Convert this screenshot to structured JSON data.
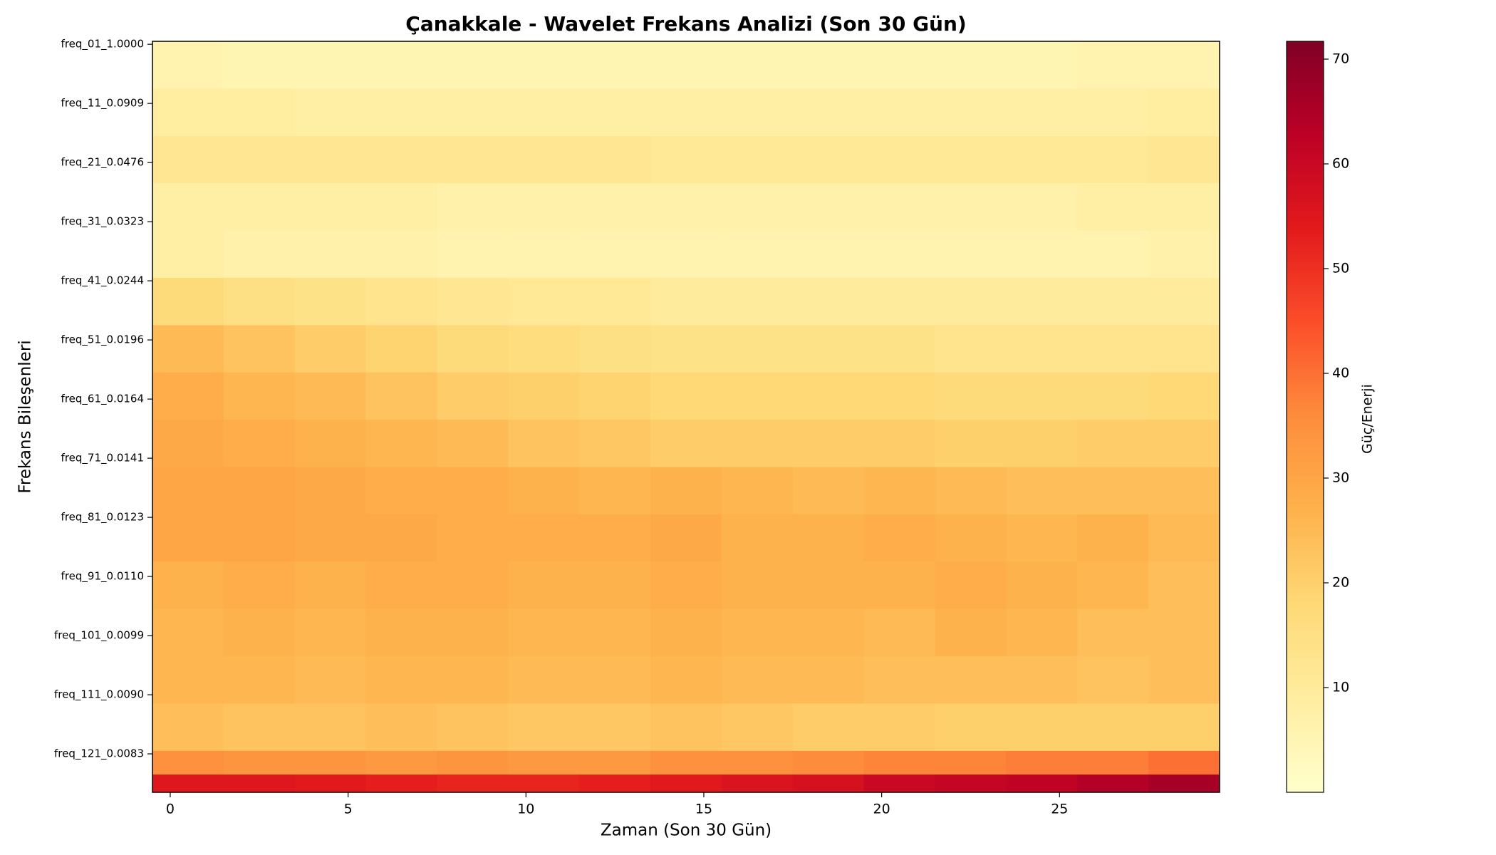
{
  "chart_data": {
    "type": "heatmap",
    "title": "Çanakkale - Wavelet Frekans Analizi (Son 30 Gün)",
    "xlabel": "Zaman (Son 30 Gün)",
    "ylabel": "Frekans Bileşenleri",
    "colorbar_label": "Güç/Enerji",
    "colormap": [
      "#ffffcc",
      "#ffeda0",
      "#fed976",
      "#feb24c",
      "#fd8d3c",
      "#fc4e2a",
      "#e31a1c",
      "#bd0026",
      "#800026"
    ],
    "xlim": [
      -0.5,
      29.5
    ],
    "ylim": [
      127.5,
      0.5
    ],
    "clim": [
      0,
      71.7
    ],
    "xticks": [
      0,
      5,
      10,
      15,
      20,
      25
    ],
    "yticks": [
      {
        "value": 1,
        "label": "freq_01_1.0000"
      },
      {
        "value": 11,
        "label": "freq_11_0.0909"
      },
      {
        "value": 21,
        "label": "freq_21_0.0476"
      },
      {
        "value": 31,
        "label": "freq_31_0.0323"
      },
      {
        "value": 41,
        "label": "freq_41_0.0244"
      },
      {
        "value": 51,
        "label": "freq_51_0.0196"
      },
      {
        "value": 61,
        "label": "freq_61_0.0164"
      },
      {
        "value": 71,
        "label": "freq_71_0.0141"
      },
      {
        "value": 81,
        "label": "freq_81_0.0123"
      },
      {
        "value": 91,
        "label": "freq_91_0.0110"
      },
      {
        "value": 101,
        "label": "freq_101_0.0099"
      },
      {
        "value": 111,
        "label": "freq_111_0.0090"
      },
      {
        "value": 121,
        "label": "freq_121_0.0083"
      }
    ],
    "cticks": [
      10,
      20,
      30,
      40,
      50,
      60,
      70
    ],
    "x_edges": [
      -0.5,
      1.5,
      3.5,
      5.5,
      7.5,
      9.5,
      11.5,
      13.5,
      15.5,
      17.5,
      19.5,
      21.5,
      23.5,
      25.5,
      27.5,
      29.5
    ],
    "y_edges": [
      0.5,
      8.5,
      16.5,
      24.5,
      32.5,
      40.5,
      48.5,
      56.5,
      64.5,
      72.5,
      80.5,
      88.5,
      96.5,
      104.5,
      112.5,
      120.5,
      124.5,
      127.5
    ],
    "values": [
      [
        6,
        5,
        5,
        5,
        5,
        5,
        5,
        5,
        5,
        5,
        5,
        5,
        5,
        6,
        6
      ],
      [
        9,
        9,
        8,
        8,
        8,
        8,
        8,
        8,
        8,
        8,
        8,
        8,
        8,
        8,
        9
      ],
      [
        12,
        12,
        12,
        12,
        12,
        12,
        12,
        11,
        11,
        11,
        11,
        11,
        11,
        11,
        12
      ],
      [
        8,
        8,
        8,
        8,
        7,
        7,
        7,
        7,
        7,
        7,
        7,
        7,
        7,
        8,
        8
      ],
      [
        8,
        7,
        7,
        7,
        6,
        6,
        6,
        6,
        6,
        6,
        6,
        6,
        6,
        6,
        7
      ],
      [
        17,
        15,
        14,
        13,
        12,
        11,
        11,
        10,
        10,
        10,
        10,
        10,
        10,
        10,
        10
      ],
      [
        25,
        23,
        21,
        19,
        17,
        16,
        15,
        14,
        14,
        14,
        14,
        13,
        13,
        13,
        13
      ],
      [
        28,
        26,
        25,
        23,
        21,
        20,
        19,
        18,
        18,
        18,
        18,
        17,
        17,
        17,
        18
      ],
      [
        29,
        28,
        27,
        26,
        25,
        23,
        22,
        21,
        21,
        21,
        21,
        20,
        20,
        21,
        21
      ],
      [
        30,
        30,
        29,
        28,
        28,
        27,
        26,
        27,
        26,
        25,
        26,
        25,
        24,
        24,
        24
      ],
      [
        30,
        30,
        29,
        29,
        28,
        28,
        28,
        29,
        27,
        27,
        28,
        27,
        26,
        27,
        25
      ],
      [
        27,
        28,
        27,
        28,
        28,
        27,
        27,
        28,
        27,
        27,
        27,
        28,
        27,
        26,
        24
      ],
      [
        26,
        27,
        26,
        27,
        27,
        26,
        26,
        27,
        26,
        26,
        25,
        27,
        26,
        24,
        24
      ],
      [
        26,
        26,
        25,
        26,
        26,
        25,
        25,
        26,
        25,
        25,
        24,
        24,
        24,
        23,
        24
      ],
      [
        24,
        23,
        23,
        24,
        23,
        22,
        22,
        23,
        22,
        21,
        21,
        20,
        20,
        20,
        20
      ],
      [
        35,
        34,
        34,
        33,
        34,
        33,
        33,
        35,
        35,
        36,
        37,
        37,
        38,
        38,
        40
      ],
      [
        55,
        55,
        54,
        53,
        52,
        52,
        53,
        54,
        56,
        57,
        60,
        61,
        62,
        64,
        66
      ]
    ]
  }
}
